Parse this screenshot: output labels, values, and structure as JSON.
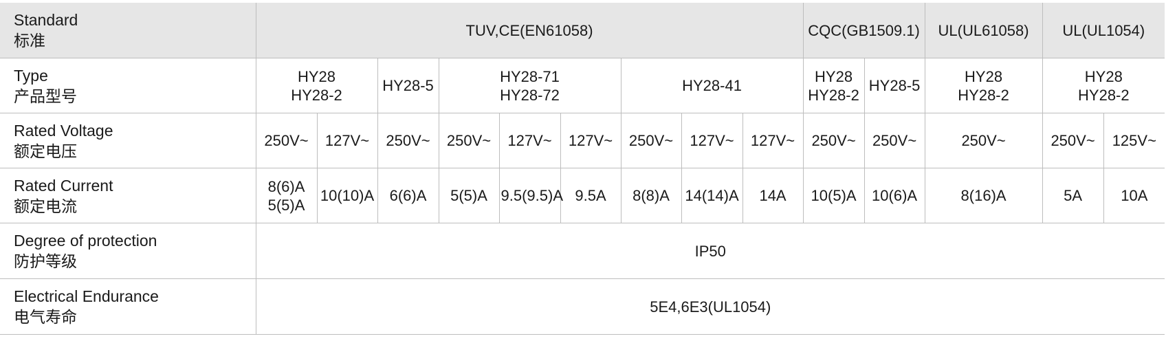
{
  "rows": {
    "standard": {
      "label_en": "Standard",
      "label_cn": "标准",
      "cells": [
        "TUV,CE(EN61058)",
        "CQC(GB1509.1)",
        "UL(UL61058)",
        "UL(UL1054)"
      ]
    },
    "type": {
      "label_en": "Type",
      "label_cn": "产品型号",
      "cells": [
        [
          "HY28",
          "HY28-2"
        ],
        [
          "HY28-5"
        ],
        [
          "HY28-71",
          "HY28-72"
        ],
        [
          "HY28-41"
        ],
        [
          "HY28",
          "HY28-2"
        ],
        [
          "HY28-5"
        ],
        [
          "HY28",
          "HY28-2"
        ],
        [
          "HY28",
          "HY28-2"
        ]
      ]
    },
    "voltage": {
      "label_en": "Rated Voltage",
      "label_cn": "额定电压",
      "cells": [
        "250V~",
        "127V~",
        "250V~",
        "250V~",
        "127V~",
        "127V~",
        "250V~",
        "127V~",
        "127V~",
        "250V~",
        "250V~",
        "250V~",
        "250V~",
        "125V~"
      ]
    },
    "current": {
      "label_en": "Rated Current",
      "label_cn": "额定电流",
      "cells": [
        [
          "8(6)A",
          "5(5)A"
        ],
        [
          "10(10)A"
        ],
        [
          "6(6)A"
        ],
        [
          "5(5)A"
        ],
        [
          "9.5(9.5)A"
        ],
        [
          "9.5A"
        ],
        [
          "8(8)A"
        ],
        [
          "14(14)A"
        ],
        [
          "14A"
        ],
        [
          "10(5)A"
        ],
        [
          "10(6)A"
        ],
        [
          "8(16)A"
        ],
        [
          "5A"
        ],
        [
          "10A"
        ]
      ]
    },
    "protection": {
      "label_en": "Degree of protection",
      "label_cn": "防护等级",
      "value": "IP50"
    },
    "endurance": {
      "label_en": "Electrical Endurance",
      "label_cn": "电气寿命",
      "value": "5E4,6E3(UL1054)"
    }
  }
}
